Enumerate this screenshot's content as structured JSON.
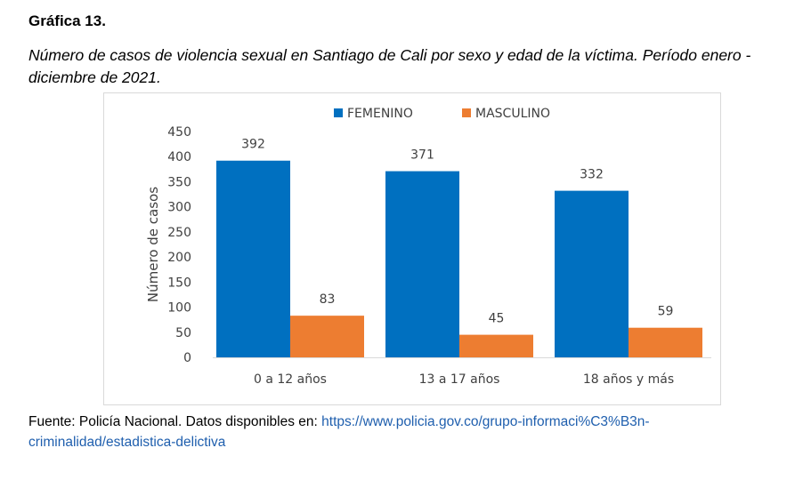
{
  "heading": "Gráfica 13.",
  "subtitle": "Número de casos de violencia sexual en Santiago de Cali por sexo y edad de la víctima. Período enero - diciembre de 2021.",
  "source": {
    "prefix": "Fuente: Policía Nacional. Datos disponibles en: ",
    "link_text": "https://www.policia.gov.co/grupo-informaci%C3%B3n-criminalidad/estadistica-delictiva"
  },
  "chart_data": {
    "type": "bar",
    "categories": [
      "0 a 12 años",
      "13 a 17 años",
      "18 años y más"
    ],
    "series": [
      {
        "name": "FEMENINO",
        "values": [
          392,
          371,
          332
        ],
        "color": "#0070c0"
      },
      {
        "name": "MASCULINO",
        "values": [
          83,
          45,
          59
        ],
        "color": "#ed7d31"
      }
    ],
    "ylabel": "Número de casos",
    "xlabel": "",
    "ylim": [
      0,
      450
    ],
    "yticks": [
      0,
      50,
      100,
      150,
      200,
      250,
      300,
      350,
      400,
      450
    ],
    "grid": false,
    "legend_position": "top-center",
    "data_labels": true
  }
}
